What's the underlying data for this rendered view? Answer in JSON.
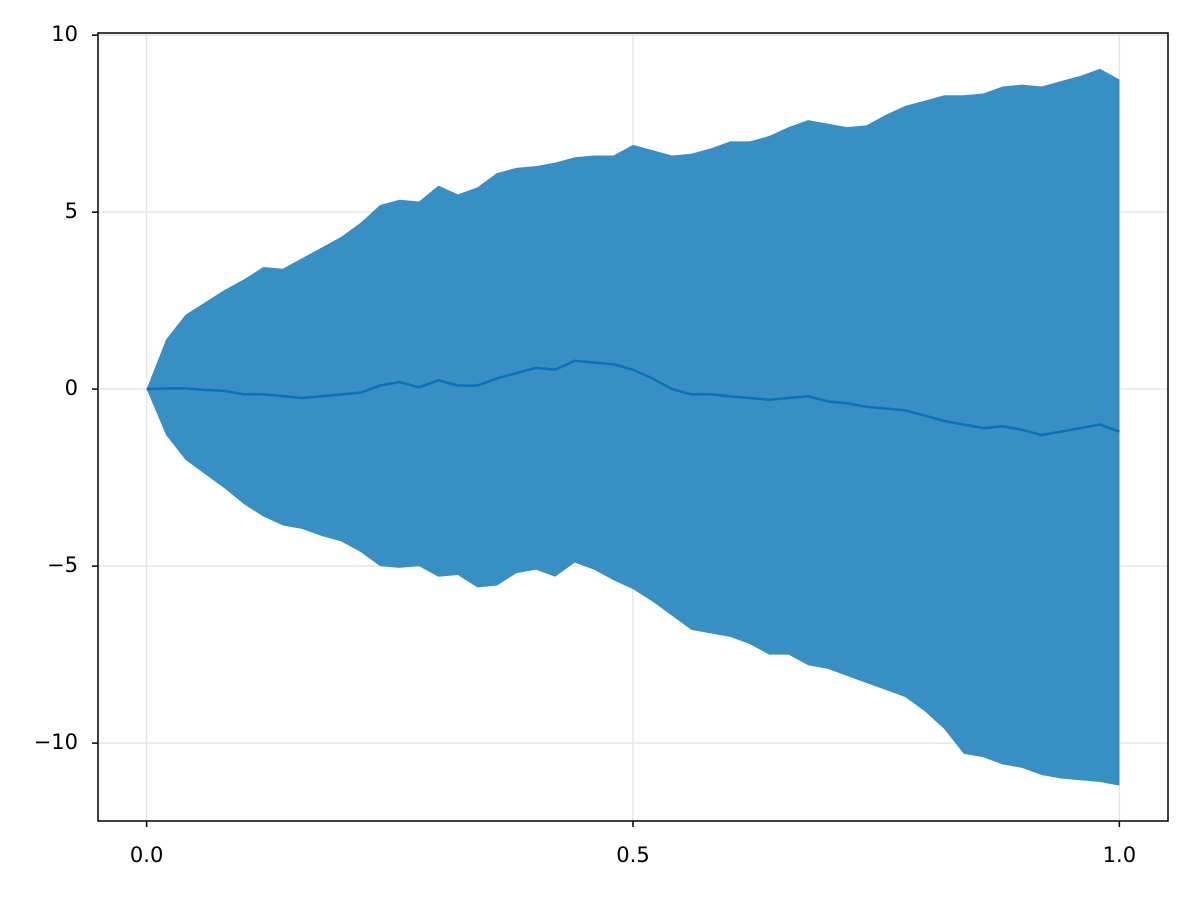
{
  "chart_data": {
    "type": "band",
    "x": [
      0,
      0.02,
      0.04,
      0.06,
      0.08,
      0.1,
      0.12,
      0.14,
      0.16,
      0.18,
      0.2,
      0.22,
      0.24,
      0.26,
      0.28,
      0.3,
      0.32,
      0.34,
      0.36,
      0.38,
      0.4,
      0.42,
      0.44,
      0.46,
      0.48,
      0.5,
      0.52,
      0.54,
      0.56,
      0.58,
      0.6,
      0.62,
      0.64,
      0.66,
      0.68,
      0.7,
      0.72,
      0.74,
      0.76,
      0.78,
      0.8,
      0.82,
      0.84,
      0.86,
      0.88,
      0.9,
      0.92,
      0.94,
      0.96,
      0.98,
      1.0
    ],
    "series": [
      {
        "type": "band",
        "color": "#378fc3",
        "upper": [
          0,
          1.4,
          2.1,
          2.45,
          2.8,
          3.1,
          3.45,
          3.4,
          3.7,
          4.0,
          4.3,
          4.7,
          5.2,
          5.35,
          5.3,
          5.75,
          5.5,
          5.7,
          6.1,
          6.25,
          6.3,
          6.4,
          6.55,
          6.6,
          6.6,
          6.9,
          6.75,
          6.6,
          6.65,
          6.8,
          7.0,
          7.0,
          7.15,
          7.4,
          7.6,
          7.5,
          7.4,
          7.45,
          7.75,
          8.0,
          8.15,
          8.3,
          8.3,
          8.35,
          8.55,
          8.6,
          8.55,
          8.7,
          8.85,
          9.05,
          8.75
        ],
        "lower": [
          0,
          -1.3,
          -2.0,
          -2.4,
          -2.8,
          -3.25,
          -3.6,
          -3.85,
          -3.95,
          -4.15,
          -4.3,
          -4.6,
          -5.0,
          -5.05,
          -5.0,
          -5.3,
          -5.25,
          -5.6,
          -5.55,
          -5.2,
          -5.1,
          -5.3,
          -4.9,
          -5.1,
          -5.4,
          -5.65,
          -6.0,
          -6.4,
          -6.8,
          -6.9,
          -7.0,
          -7.2,
          -7.5,
          -7.5,
          -7.8,
          -7.9,
          -8.1,
          -8.3,
          -8.5,
          -8.7,
          -9.1,
          -9.6,
          -10.3,
          -10.4,
          -10.6,
          -10.7,
          -10.9,
          -11.0,
          -11.05,
          -11.1,
          -11.2
        ]
      },
      {
        "type": "line",
        "color": "#0a72b5",
        "values": [
          0,
          0.02,
          0.02,
          -0.02,
          -0.05,
          -0.15,
          -0.15,
          -0.2,
          -0.25,
          -0.2,
          -0.15,
          -0.1,
          0.1,
          0.2,
          0.05,
          0.25,
          0.1,
          0.1,
          0.3,
          0.45,
          0.6,
          0.55,
          0.8,
          0.75,
          0.7,
          0.55,
          0.3,
          0.0,
          -0.15,
          -0.15,
          -0.2,
          -0.25,
          -0.3,
          -0.25,
          -0.2,
          -0.35,
          -0.4,
          -0.5,
          -0.55,
          -0.6,
          -0.75,
          -0.9,
          -1.0,
          -1.1,
          -1.05,
          -1.15,
          -1.3,
          -1.2,
          -1.1,
          -1.0,
          -1.2
        ]
      }
    ],
    "xlim": [
      -0.05,
      1.05
    ],
    "ylim": [
      -12.2,
      10.06
    ],
    "xticks": [
      {
        "value": 0,
        "label": "0.0"
      },
      {
        "value": 0.5,
        "label": "0.5"
      },
      {
        "value": 1,
        "label": "1.0"
      }
    ],
    "yticks": [
      {
        "value": -10,
        "label": "−10"
      },
      {
        "value": -5,
        "label": "−5"
      },
      0,
      5,
      10
    ],
    "grid": true
  }
}
